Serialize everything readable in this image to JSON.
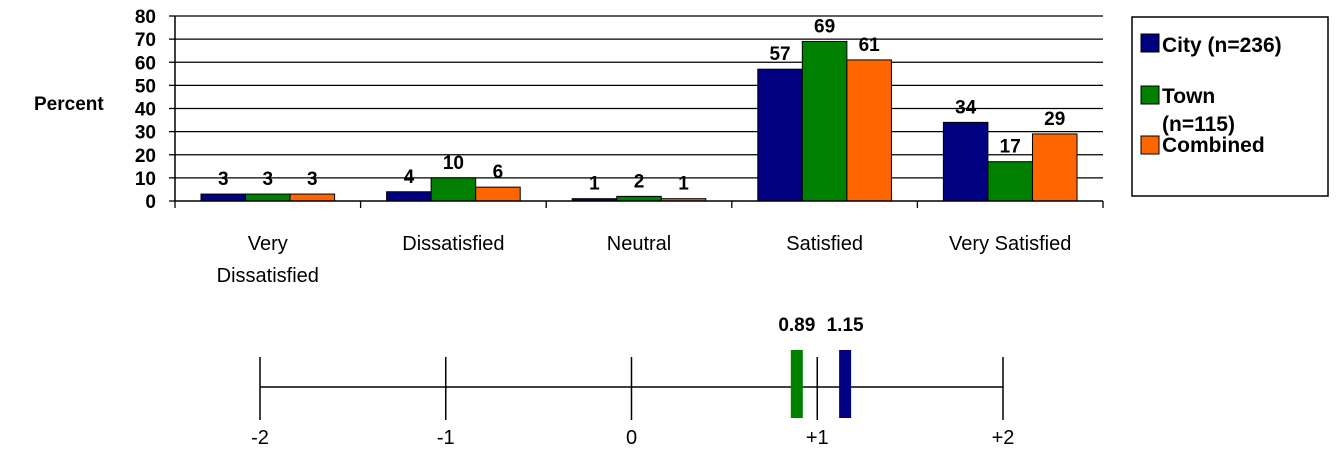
{
  "chart_data": [
    {
      "type": "bar",
      "ylabel": "Percent",
      "ylim": [
        0,
        80
      ],
      "yticks": [
        0,
        10,
        20,
        30,
        40,
        50,
        60,
        70,
        80
      ],
      "grid": true,
      "legend_position": "right",
      "categories": [
        "Very Dissatisfied",
        "Dissatisfied",
        "Neutral",
        "Satisfied",
        "Very Satisfied"
      ],
      "category_lines": [
        [
          "Very",
          "Dissatisfied"
        ],
        [
          "Dissatisfied"
        ],
        [
          "Neutral"
        ],
        [
          "Satisfied"
        ],
        [
          "Very Satisfied"
        ]
      ],
      "series": [
        {
          "name": "City (n=236)",
          "legend_lines": [
            "City (n=236)"
          ],
          "color": "#000080",
          "values": [
            3,
            4,
            1,
            57,
            34
          ]
        },
        {
          "name": "Town (n=115)",
          "legend_lines": [
            "Town",
            "(n=115)"
          ],
          "color": "#008000",
          "values": [
            3,
            10,
            2,
            69,
            17
          ]
        },
        {
          "name": "Combined",
          "legend_lines": [
            "Combined"
          ],
          "color": "#FF6600",
          "values": [
            3,
            6,
            1,
            61,
            29
          ]
        }
      ]
    },
    {
      "type": "scale",
      "xlim": [
        -2,
        2
      ],
      "tick_values": [
        -2,
        -1,
        0,
        1,
        2
      ],
      "tick_labels": [
        "-2",
        "-1",
        "0",
        "+1",
        "+2"
      ],
      "markers": [
        {
          "label": "0.89",
          "value": 0.89,
          "color": "#008000"
        },
        {
          "label": "1.15",
          "value": 1.15,
          "color": "#000080"
        }
      ]
    }
  ]
}
